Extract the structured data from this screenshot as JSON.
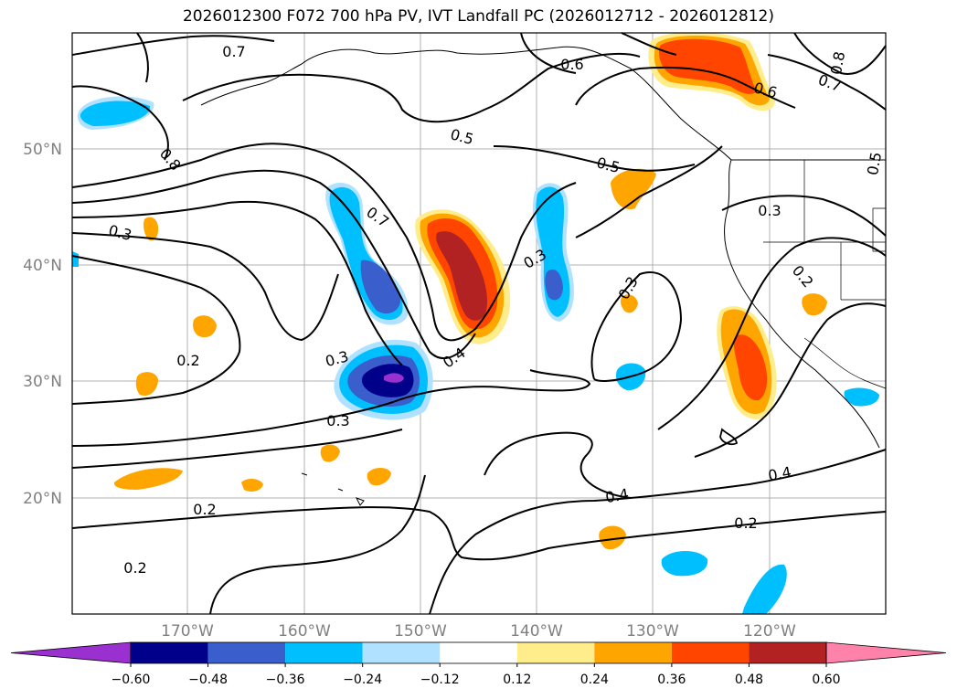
{
  "title": "2026012300 F072 700 hPa PV, IVT Landfall PC (2026012712 - 2026012812)",
  "axes": {
    "lat_labels": [
      "50°N",
      "40°N",
      "30°N",
      "20°N"
    ],
    "lon_labels": [
      "170°W",
      "160°W",
      "150°W",
      "140°W",
      "130°W",
      "120°W"
    ]
  },
  "colorbar": {
    "levels": [
      "−0.60",
      "−0.48",
      "−0.36",
      "−0.24",
      "−0.12",
      "0.12",
      "0.24",
      "0.36",
      "0.48",
      "0.60"
    ],
    "colors": [
      "#9b30d0",
      "#00008b",
      "#3a5fcd",
      "#00bfff",
      "#b0e2ff",
      "#ffffff",
      "#ffec8b",
      "#ffa500",
      "#ff4500",
      "#b22222",
      "#ff82ab"
    ]
  },
  "contour_labels": [
    "0.7",
    "0.6",
    "0.8",
    "0.7",
    "0.6",
    "0.5",
    "0.5",
    "0.8",
    "0.5",
    "0.3",
    "0.7",
    "0.3",
    "0.3",
    "0.2",
    "0.3",
    "0.4",
    "0.3",
    "0.3",
    "0.2",
    "0.4",
    "0.2",
    "0.4",
    "0.2",
    "0.2"
  ],
  "colors": {
    "grid": "#b0b0b0",
    "contour": "#000000",
    "coast": "#000000"
  }
}
